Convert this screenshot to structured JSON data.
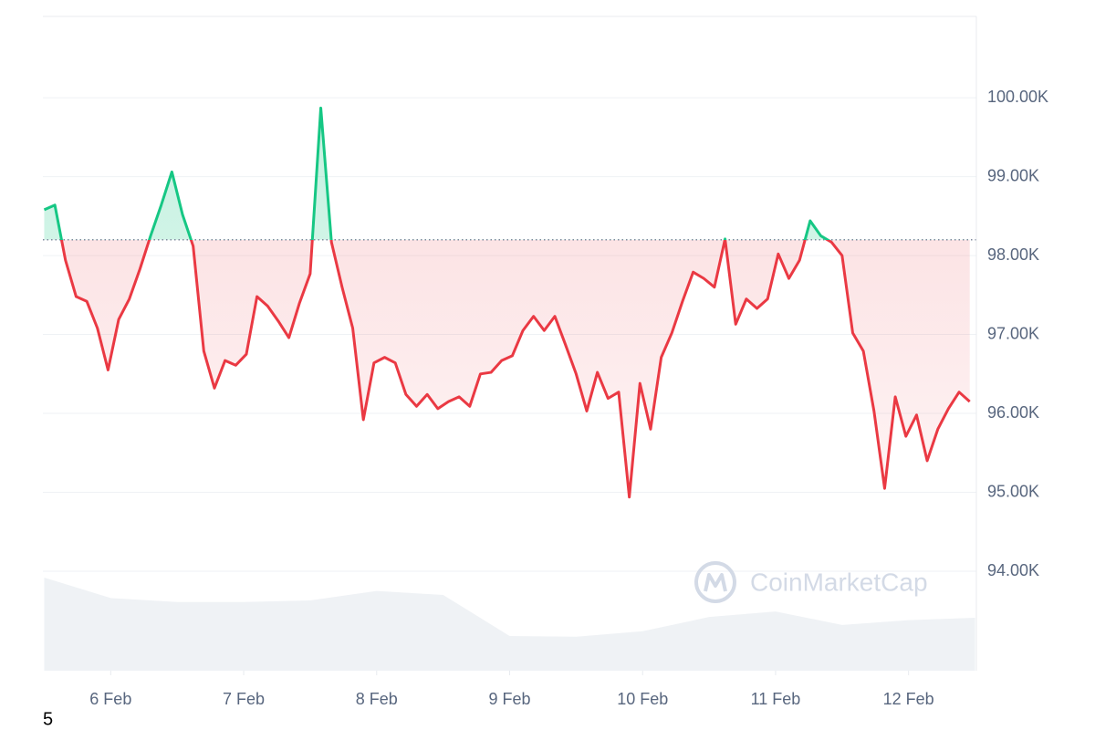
{
  "chart_data": {
    "type": "line",
    "x": [
      5.5,
      5.58,
      5.66,
      5.74,
      5.82,
      5.9,
      5.98,
      6.06,
      6.14,
      6.22,
      6.3,
      6.38,
      6.46,
      6.54,
      6.62,
      6.7,
      6.78,
      6.86,
      6.94,
      7.02,
      7.1,
      7.18,
      7.26,
      7.34,
      7.42,
      7.5,
      7.58,
      7.66,
      7.74,
      7.82,
      7.9,
      7.98,
      8.06,
      8.14,
      8.22,
      8.3,
      8.38,
      8.46,
      8.54,
      8.62,
      8.7,
      8.78,
      8.86,
      8.94,
      9.02,
      9.1,
      9.18,
      9.26,
      9.34,
      9.42,
      9.5,
      9.58,
      9.66,
      9.74,
      9.82,
      9.9,
      9.98,
      10.06,
      10.14,
      10.22,
      10.3,
      10.38,
      10.46,
      10.54,
      10.62,
      10.7,
      10.78,
      10.86,
      10.94,
      11.02,
      11.1,
      11.18,
      11.26,
      11.34,
      11.42,
      11.5,
      11.58,
      11.66,
      11.74,
      11.82,
      11.9,
      11.98,
      12.06,
      12.14,
      12.22,
      12.3,
      12.38,
      12.46
    ],
    "series": [
      {
        "color": "#ea3943",
        "color_above": "#16c784",
        "values": [
          98580,
          98640,
          97940,
          97480,
          97420,
          97080,
          96550,
          97190,
          97450,
          97830,
          98250,
          98640,
          99060,
          98520,
          98120,
          96790,
          96320,
          96670,
          96610,
          96750,
          97480,
          97360,
          97170,
          96960,
          97400,
          97770,
          99870,
          98170,
          97600,
          97080,
          95920,
          96640,
          96710,
          96640,
          96240,
          96090,
          96240,
          96060,
          96150,
          96210,
          96090,
          96500,
          96520,
          96670,
          96730,
          97050,
          97230,
          97050,
          97230,
          96870,
          96500,
          96030,
          96520,
          96190,
          96270,
          94940,
          96380,
          95800,
          96710,
          97020,
          97420,
          97790,
          97710,
          97600,
          98210,
          97130,
          97450,
          97330,
          97450,
          98020,
          97710,
          97940,
          98440,
          98250,
          98170,
          98000,
          97020,
          96790,
          96030,
          95050,
          96210,
          95710,
          95980,
          95400,
          95800,
          96060,
          96270,
          96150
        ]
      }
    ],
    "baseline": 98200,
    "volume": {
      "color": "#eff2f5",
      "x": [
        5.5,
        6,
        6.5,
        7,
        7.5,
        8,
        8.5,
        9,
        9.5,
        10,
        10.5,
        11,
        11.5,
        12,
        12.5
      ],
      "values": [
        93920,
        93660,
        93610,
        93610,
        93630,
        93750,
        93700,
        93180,
        93170,
        93240,
        93420,
        93490,
        93320,
        93380,
        93410
      ]
    },
    "xlim": [
      5.49,
      12.51
    ],
    "xticks": [
      {
        "value": 6,
        "label": "6 Feb"
      },
      {
        "value": 7,
        "label": "7 Feb"
      },
      {
        "value": 8,
        "label": "8 Feb"
      },
      {
        "value": 9,
        "label": "9 Feb"
      },
      {
        "value": 10,
        "label": "10 Feb"
      },
      {
        "value": 11,
        "label": "11 Feb"
      },
      {
        "value": 12,
        "label": "12 Feb"
      }
    ],
    "ylim": [
      92740,
      101030
    ],
    "yticks": [
      {
        "value": 94000,
        "label": "94.00K"
      },
      {
        "value": 95000,
        "label": "95.00K"
      },
      {
        "value": 96000,
        "label": "96.00K"
      },
      {
        "value": 97000,
        "label": "97.00K"
      },
      {
        "value": 98000,
        "label": "98.00K"
      },
      {
        "value": 99000,
        "label": "99.00K"
      },
      {
        "value": 100000,
        "label": "100.00K"
      }
    ],
    "grid": true,
    "watermark": "CoinMarketCap",
    "footnote": "5"
  }
}
